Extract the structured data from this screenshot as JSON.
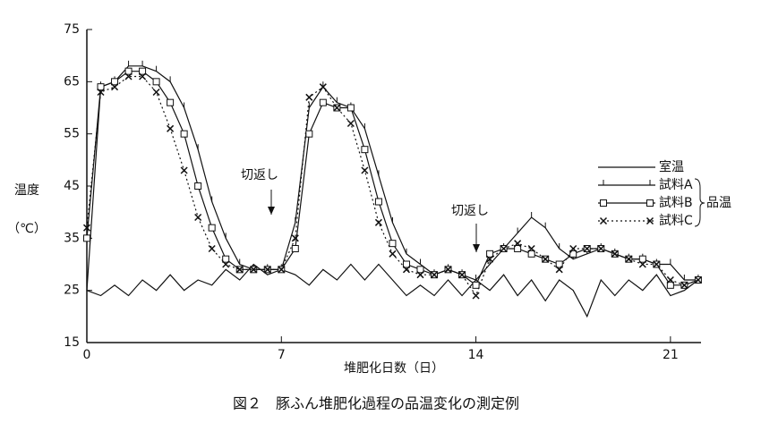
{
  "chart_data": {
    "type": "line",
    "title": "図２　豚ふん堆肥化過程の品温変化の測定例",
    "xlabel": "堆肥化日数（日）",
    "ylabel": "温度",
    "yunit": "（℃）",
    "annotations": [
      "切返し",
      "切返し"
    ],
    "legend_group_label": "品温",
    "legend": "right",
    "xlim": [
      0,
      22.1
    ],
    "xticks": [
      0,
      7,
      14,
      21
    ],
    "ylim": [
      15,
      75
    ],
    "yticks": [
      15,
      25,
      35,
      45,
      55,
      65,
      75
    ],
    "x": [
      0,
      0.5,
      1,
      1.5,
      2,
      2.5,
      3,
      3.5,
      4,
      4.5,
      5,
      5.5,
      6,
      6.5,
      7,
      7.5,
      8,
      8.5,
      9,
      9.5,
      10,
      10.5,
      11,
      11.5,
      12,
      12.5,
      13,
      13.5,
      14,
      14.5,
      15,
      15.5,
      16,
      16.5,
      17,
      17.5,
      18,
      18.5,
      19,
      19.5,
      20,
      20.5,
      21,
      21.5,
      22
    ],
    "series": [
      {
        "name": "室温",
        "color": "#111111",
        "marker": "none",
        "dash": false,
        "values": [
          25,
          24,
          26,
          24,
          27,
          25,
          28,
          25,
          27,
          26,
          29,
          27,
          30,
          28,
          29,
          28,
          26,
          29,
          27,
          30,
          27,
          30,
          27,
          24,
          26,
          24,
          27,
          24,
          27,
          25,
          28,
          24,
          27,
          23,
          27,
          25,
          20,
          27,
          24,
          27,
          25,
          28,
          24,
          25,
          27
        ]
      },
      {
        "name": "試料A",
        "color": "#111111",
        "marker": "tick",
        "dash": false,
        "values": [
          25,
          64,
          65,
          68,
          68,
          67,
          65,
          60,
          52,
          42,
          35,
          30,
          29,
          29,
          29,
          38,
          60,
          64,
          61,
          60,
          56,
          47,
          38,
          32,
          30,
          28,
          29,
          28,
          27,
          30,
          33,
          36,
          39,
          37,
          33,
          31,
          32,
          33,
          32,
          31,
          31,
          30,
          30,
          27,
          27
        ]
      },
      {
        "name": "試料B",
        "color": "#111111",
        "marker": "square",
        "dash": false,
        "values": [
          35,
          64,
          65,
          67,
          67,
          65,
          61,
          55,
          45,
          37,
          31,
          29,
          29,
          29,
          29,
          33,
          55,
          61,
          60,
          60,
          52,
          42,
          34,
          30,
          29,
          28,
          29,
          28,
          26,
          32,
          33,
          33,
          32,
          31,
          30,
          32,
          33,
          33,
          32,
          31,
          31,
          30,
          26,
          26,
          27
        ]
      },
      {
        "name": "試料C",
        "color": "#111111",
        "marker": "x",
        "dash": true,
        "values": [
          37,
          63,
          64,
          66,
          66,
          63,
          56,
          48,
          39,
          33,
          30,
          29,
          29,
          29,
          29,
          35,
          62,
          64,
          60,
          57,
          48,
          38,
          32,
          29,
          28,
          28,
          29,
          28,
          24,
          31,
          33,
          34,
          33,
          31,
          29,
          33,
          33,
          33,
          32,
          31,
          30,
          30,
          27,
          26,
          27
        ]
      }
    ]
  }
}
